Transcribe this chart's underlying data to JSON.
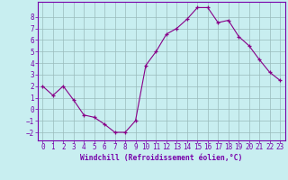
{
  "x": [
    0,
    1,
    2,
    3,
    4,
    5,
    6,
    7,
    8,
    9,
    10,
    11,
    12,
    13,
    14,
    15,
    16,
    17,
    18,
    19,
    20,
    21,
    22,
    23
  ],
  "y": [
    2.0,
    1.2,
    2.0,
    0.8,
    -0.5,
    -0.7,
    -1.3,
    -2.0,
    -2.0,
    -1.0,
    3.8,
    5.0,
    6.5,
    7.0,
    7.8,
    8.8,
    8.8,
    7.5,
    7.7,
    6.3,
    5.5,
    4.3,
    3.2,
    2.5
  ],
  "xlim": [
    -0.5,
    23.5
  ],
  "ylim": [
    -2.7,
    9.3
  ],
  "xticks": [
    0,
    1,
    2,
    3,
    4,
    5,
    6,
    7,
    8,
    9,
    10,
    11,
    12,
    13,
    14,
    15,
    16,
    17,
    18,
    19,
    20,
    21,
    22,
    23
  ],
  "yticks": [
    -2,
    -1,
    0,
    1,
    2,
    3,
    4,
    5,
    6,
    7,
    8
  ],
  "xlabel": "Windchill (Refroidissement éolien,°C)",
  "line_color": "#880088",
  "marker_color": "#880088",
  "bg_color": "#c8eef0",
  "grid_color": "#99bbbb",
  "spine_color": "#7700aa",
  "tick_color": "#7700aa",
  "label_color": "#7700aa",
  "font_size_label": 5.8,
  "font_size_tick": 5.5
}
